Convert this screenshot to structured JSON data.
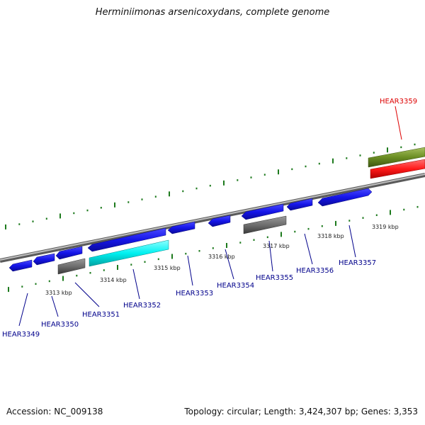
{
  "title": "Herminiimonas arsenicoxydans, complete genome",
  "footer": {
    "accession": "Accession: NC_009138",
    "summary": "Topology: circular; Length: 3,424,307 bp; Genes: 3,353"
  },
  "colors": {
    "backbone": "#8c8c8c",
    "tick": "#1d7a1d",
    "cds_forward": "#1515e8",
    "cds_reverse": "#1515e8",
    "pseudo": "#6e6e6e",
    "highlight": "#00f5f5",
    "rna": "#ff1a1a",
    "operon": "#6b8e23",
    "label_default": "#00008b",
    "label_highlight": "#dd0000"
  },
  "tick_labels": [
    "3313 kbp",
    "3314 kbp",
    "3315 kbp",
    "3316 kbp",
    "3317 kbp",
    "3318 kbp",
    "3319 kbp"
  ],
  "gene_labels": [
    "HEAR3349",
    "HEAR3350",
    "HEAR3351",
    "HEAR3352",
    "HEAR3353",
    "HEAR3354",
    "HEAR3355",
    "HEAR3356",
    "HEAR3357",
    "HEAR3359"
  ],
  "features": [
    {
      "id": "f1",
      "track": "reverse",
      "type": "cds"
    },
    {
      "id": "f2",
      "track": "reverse",
      "type": "cds"
    },
    {
      "id": "f3",
      "track": "reverse",
      "type": "cds"
    },
    {
      "id": "f4",
      "track": "reverse",
      "type": "cds"
    },
    {
      "id": "f5",
      "track": "reverse",
      "type": "cds"
    },
    {
      "id": "f6",
      "track": "reverse",
      "type": "cds"
    },
    {
      "id": "f7",
      "track": "reverse",
      "type": "cds"
    },
    {
      "id": "f8",
      "track": "reverse",
      "type": "cds"
    },
    {
      "id": "f9",
      "track": "forward",
      "type": "cds"
    },
    {
      "id": "f10",
      "track": "lower",
      "type": "pseudo"
    },
    {
      "id": "f11",
      "track": "lower",
      "type": "highlight"
    },
    {
      "id": "f12",
      "track": "lower",
      "type": "pseudo"
    },
    {
      "id": "f13",
      "track": "upper",
      "type": "operon"
    },
    {
      "id": "f14",
      "track": "upper",
      "type": "rna"
    }
  ]
}
